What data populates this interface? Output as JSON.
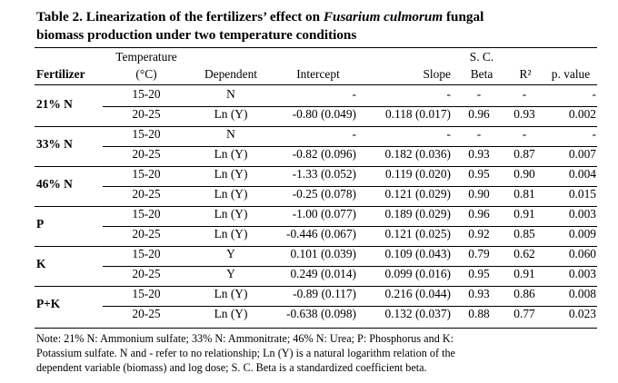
{
  "title": {
    "pre": "Table 2. Linearization of the fertilizers’ effect on ",
    "species": "Fusarium culmorum",
    "post_line1": " fungal",
    "line2": "biomass production under two temperature conditions"
  },
  "headers": {
    "fertilizer": "Fertilizer",
    "temperature_l1": "Temperature",
    "temperature_l2": "(°C)",
    "dependent": "Dependent",
    "intercept": "Intercept",
    "slope": "Slope",
    "scbeta_l1": "S. C.",
    "scbeta_l2": "Beta",
    "r2": "R²",
    "pvalue": "p. value"
  },
  "groups": [
    {
      "fertilizer": "21% N",
      "rows": [
        {
          "temp": "15-20",
          "dep": "N",
          "intercept": "-",
          "slope": "-",
          "beta": "-",
          "r2": "-",
          "p": "-"
        },
        {
          "temp": "20-25",
          "dep": "Ln (Y)",
          "intercept": "-0.80 (0.049)",
          "slope": "0.118 (0.017)",
          "beta": "0.96",
          "r2": "0.93",
          "p": "0.002"
        }
      ]
    },
    {
      "fertilizer": "33% N",
      "rows": [
        {
          "temp": "15-20",
          "dep": "N",
          "intercept": "-",
          "slope": "-",
          "beta": "-",
          "r2": "-",
          "p": "-"
        },
        {
          "temp": "20-25",
          "dep": "Ln (Y)",
          "intercept": "-0.82 (0.096)",
          "slope": "0.182 (0.036)",
          "beta": "0.93",
          "r2": "0.87",
          "p": "0.007"
        }
      ]
    },
    {
      "fertilizer": "46% N",
      "rows": [
        {
          "temp": "15-20",
          "dep": "Ln (Y)",
          "intercept": "-1.33 (0.052)",
          "slope": "0.119 (0.020)",
          "beta": "0.95",
          "r2": "0.90",
          "p": "0.004"
        },
        {
          "temp": "20-25",
          "dep": "Ln (Y)",
          "intercept": "-0.25 (0.078)",
          "slope": "0.121 (0.029)",
          "beta": "0.90",
          "r2": "0.81",
          "p": "0.015"
        }
      ]
    },
    {
      "fertilizer": "P",
      "rows": [
        {
          "temp": "15-20",
          "dep": "Ln (Y)",
          "intercept": "-1.00 (0.077)",
          "slope": "0.189 (0.029)",
          "beta": "0.96",
          "r2": "0.91",
          "p": "0.003"
        },
        {
          "temp": "20-25",
          "dep": "Ln (Y)",
          "intercept": "-0.446 (0.067)",
          "slope": "0.121 (0.025)",
          "beta": "0.92",
          "r2": "0.85",
          "p": "0.009"
        }
      ]
    },
    {
      "fertilizer": "K",
      "rows": [
        {
          "temp": "15-20",
          "dep": "Y",
          "intercept": "0.101 (0.039)",
          "slope": "0.109 (0.043)",
          "beta": "0.79",
          "r2": "0.62",
          "p": "0.060"
        },
        {
          "temp": "20-25",
          "dep": "Y",
          "intercept": "0.249 (0.014)",
          "slope": "0.099 (0.016)",
          "beta": "0.95",
          "r2": "0.91",
          "p": "0.003"
        }
      ]
    },
    {
      "fertilizer": "P+K",
      "rows": [
        {
          "temp": "15-20",
          "dep": "Ln (Y)",
          "intercept": "-0.89 (0.117)",
          "slope": "0.216 (0.044)",
          "beta": "0.93",
          "r2": "0.86",
          "p": "0.008"
        },
        {
          "temp": "20-25",
          "dep": "Ln (Y)",
          "intercept": "-0.638 (0.098)",
          "slope": "0.132 (0.037)",
          "beta": "0.88",
          "r2": "0.77",
          "p": "0.023"
        }
      ]
    }
  ],
  "note": {
    "line1": "Note: 21% N: Ammonium sulfate; 33% N: Ammonitrate; 46% N: Urea; P: Phosphorus and K:",
    "line2": "Potassium sulfate. N and - refer to no relationship; Ln (Y) is a natural logarithm relation of the",
    "line3": "dependent variable (biomass) and log dose; S. C. Beta is a standardized coefficient beta."
  }
}
